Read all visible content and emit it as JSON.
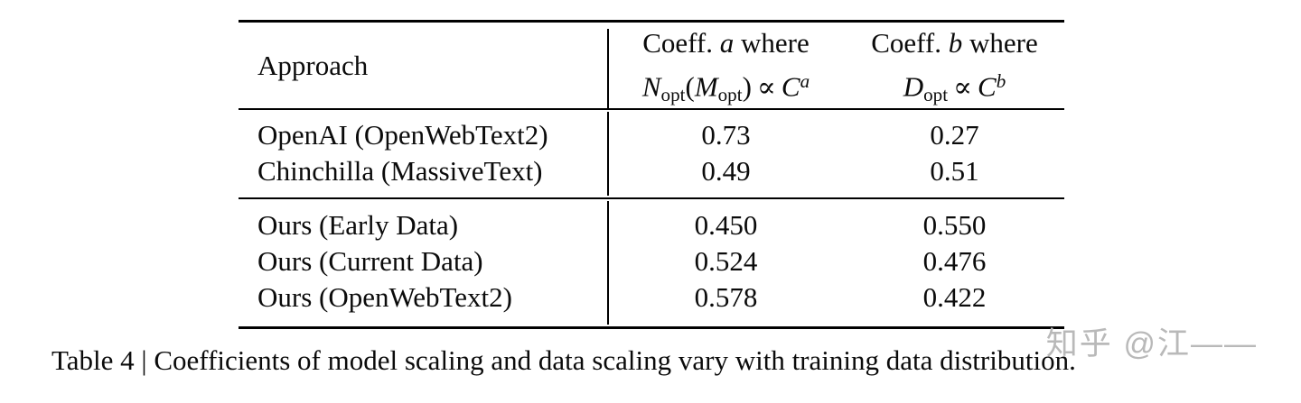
{
  "page": {
    "background_color": "#ffffff",
    "text_color": "#0b0b0b",
    "rule_color": "#000000"
  },
  "table": {
    "header": {
      "approach_label": "Approach",
      "col_a": {
        "line1": {
          "pre": "Coeff. ",
          "var": "a",
          "post": " where"
        },
        "math": {
          "v1": "N",
          "sub1": "opt",
          "open": "(",
          "v2": "M",
          "sub2": "opt",
          "close": ")",
          "propto": "∝",
          "v3": "C",
          "exp": "a"
        }
      },
      "col_b": {
        "line1": {
          "pre": "Coeff. ",
          "var": "b",
          "post": " where"
        },
        "math": {
          "v1": "D",
          "sub1": "opt",
          "propto": "∝",
          "v2": "C",
          "exp": "b"
        }
      }
    },
    "groups": [
      {
        "rows": [
          {
            "approach": "OpenAI (OpenWebText2)",
            "coeff_a": "0.73",
            "coeff_b": "0.27"
          },
          {
            "approach": "Chinchilla (MassiveText)",
            "coeff_a": "0.49",
            "coeff_b": "0.51"
          }
        ]
      },
      {
        "rows": [
          {
            "approach": "Ours (Early Data)",
            "coeff_a": "0.450",
            "coeff_b": "0.550"
          },
          {
            "approach": "Ours (Current Data)",
            "coeff_a": "0.524",
            "coeff_b": "0.476"
          },
          {
            "approach": "Ours (OpenWebText2)",
            "coeff_a": "0.578",
            "coeff_b": "0.422"
          }
        ]
      }
    ]
  },
  "caption": "Table 4 | Coefficients of model scaling and data scaling vary with training data distribution.",
  "watermark": {
    "text": "知乎 @江——",
    "color": "#b9b9b9"
  },
  "chart_data": {
    "type": "table",
    "title": "Table 4 | Coefficients of model scaling and data scaling vary with training data distribution.",
    "columns": [
      "Approach",
      "Coeff. a where N_opt(M_opt) ∝ C^a",
      "Coeff. b where D_opt ∝ C^b"
    ],
    "rows": [
      [
        "OpenAI (OpenWebText2)",
        0.73,
        0.27
      ],
      [
        "Chinchilla (MassiveText)",
        0.49,
        0.51
      ],
      [
        "Ours (Early Data)",
        0.45,
        0.55
      ],
      [
        "Ours (Current Data)",
        0.524,
        0.476
      ],
      [
        "Ours (OpenWebText2)",
        0.578,
        0.422
      ]
    ],
    "group_breaks_after_row": [
      1
    ]
  }
}
